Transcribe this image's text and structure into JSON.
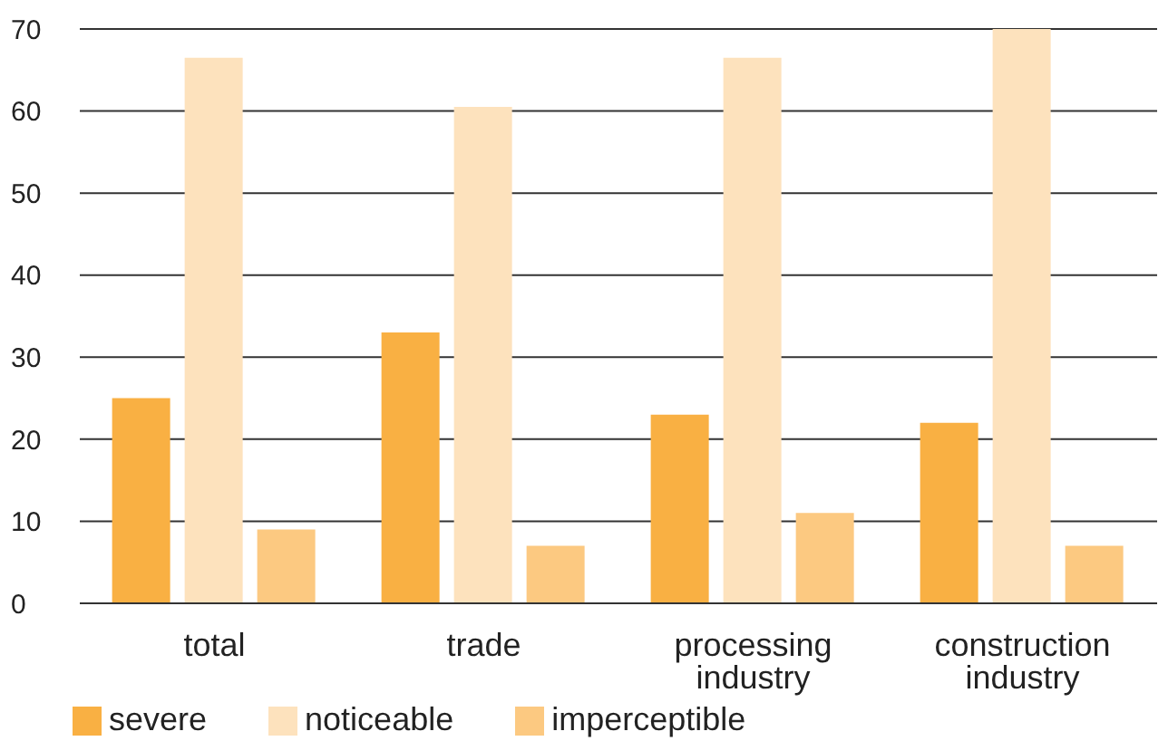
{
  "chart_data": {
    "type": "bar",
    "categories": [
      "total",
      "trade",
      "processing industry",
      "construction industry"
    ],
    "series": [
      {
        "name": "severe",
        "color": "#f9b043",
        "values": [
          25,
          33,
          23,
          22
        ]
      },
      {
        "name": "noticeable",
        "color": "#fde2bd",
        "values": [
          66.5,
          60.5,
          66.5,
          70
        ]
      },
      {
        "name": "imperceptible",
        "color": "#fcc981",
        "values": [
          9,
          7,
          11,
          7
        ]
      }
    ],
    "ylim": [
      0,
      70
    ],
    "yticks": [
      0,
      10,
      20,
      30,
      40,
      50,
      60,
      70
    ],
    "grid": "y",
    "legend": "bottom left"
  }
}
